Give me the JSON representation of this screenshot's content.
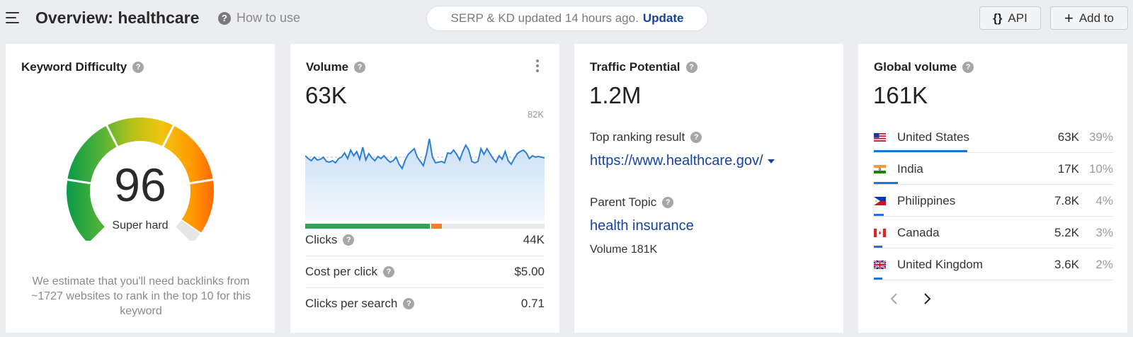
{
  "header": {
    "title": "Overview: healthcare",
    "how_to_use": "How to use",
    "update_notice": "SERP & KD updated 14 hours ago.",
    "update_link": "Update",
    "api_label": "API",
    "add_to_label": "Add to"
  },
  "kd": {
    "title": "Keyword Difficulty",
    "value": "96",
    "label": "Super hard",
    "score": 96,
    "description": "We estimate that you'll need backlinks from ~1727 websites to rank in the top 10 for this keyword"
  },
  "volume": {
    "title": "Volume",
    "value": "63K",
    "max_label": "82K",
    "click_split": {
      "organic": 0.52,
      "paid": 0.045
    },
    "rows": [
      {
        "label": "Clicks",
        "value": "44K"
      },
      {
        "label": "Cost per click",
        "value": "$5.00"
      },
      {
        "label": "Clicks per search",
        "value": "0.71"
      }
    ]
  },
  "traffic_potential": {
    "title": "Traffic Potential",
    "value": "1.2M",
    "top_result_label": "Top ranking result",
    "top_result_url": "https://www.healthcare.gov/",
    "parent_topic_label": "Parent Topic",
    "parent_topic": "health insurance",
    "parent_volume": "Volume 181K"
  },
  "global_volume": {
    "title": "Global volume",
    "value": "161K",
    "countries": [
      {
        "name": "United States",
        "volume": "63K",
        "pct": "39%",
        "share": 0.39,
        "flag": "us-flag-icon"
      },
      {
        "name": "India",
        "volume": "17K",
        "pct": "10%",
        "share": 0.1,
        "flag": "in-flag-icon"
      },
      {
        "name": "Philippines",
        "volume": "7.8K",
        "pct": "4%",
        "share": 0.04,
        "flag": "ph-flag-icon"
      },
      {
        "name": "Canada",
        "volume": "5.2K",
        "pct": "3%",
        "share": 0.03,
        "flag": "ca-flag-icon"
      },
      {
        "name": "United Kingdom",
        "volume": "3.6K",
        "pct": "2%",
        "share": 0.02,
        "flag": "gb-flag-icon"
      }
    ],
    "prev_icon": "chevron-left-icon",
    "next_icon": "chevron-right-icon"
  },
  "colors": {
    "link": "#1443a8",
    "volume_line": "#2b7fd6",
    "organic_clicks": "#2ea45c",
    "paid_clicks": "#f57d24",
    "country_bar": "#1f74db"
  }
}
